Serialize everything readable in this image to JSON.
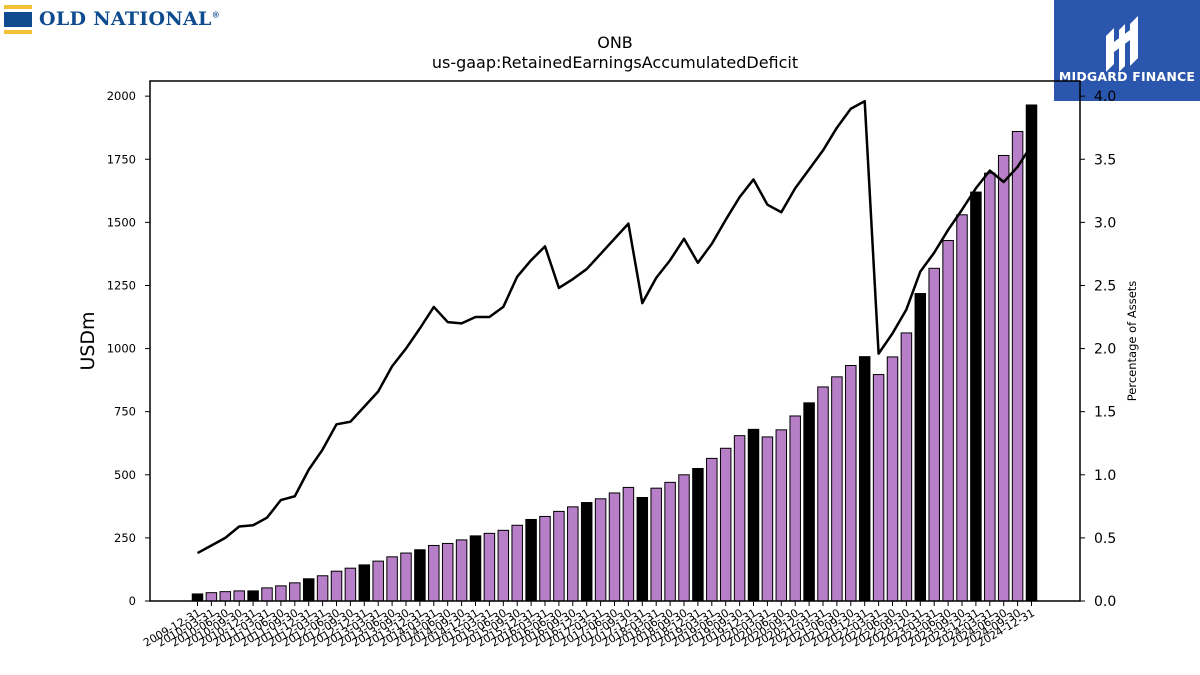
{
  "left_logo": {
    "text": "OLD NATIONAL",
    "mark": "®",
    "colors": {
      "blue": "#0f4c8f",
      "gold": "#f3c136"
    }
  },
  "right_logo": {
    "text": "MIDGARD FINANCE",
    "icon": "midgard-mark-icon",
    "colors": {
      "background": "#2a56ad",
      "foreground": "#ffffff"
    }
  },
  "chart_data": {
    "type": "bar",
    "title": "ONB",
    "subtitle": "us-gaap:RetainedEarningsAccumulatedDeficit",
    "ylabel": "USDm",
    "y2label": "Percentage of Assets",
    "ylim": [
      0,
      2060
    ],
    "y2lim": [
      0,
      4.12
    ],
    "yticks": [
      "0",
      "250",
      "500",
      "750",
      "1000",
      "1250",
      "1500",
      "1750",
      "2000"
    ],
    "y2ticks": [
      "0.0",
      "0.5",
      "1.0",
      "1.5",
      "2.0",
      "2.5",
      "3.0",
      "3.5",
      "4.0"
    ],
    "categories": [
      "2009-12-31",
      "2010-03-31",
      "2010-06-30",
      "2010-09-30",
      "2010-12-31",
      "2011-03-31",
      "2011-06-30",
      "2011-09-30",
      "2011-12-31",
      "2012-03-31",
      "2012-06-30",
      "2012-09-30",
      "2012-12-31",
      "2013-03-31",
      "2013-06-30",
      "2013-09-30",
      "2013-12-31",
      "2014-03-31",
      "2014-06-30",
      "2014-09-30",
      "2014-12-31",
      "2015-03-31",
      "2015-06-30",
      "2015-09-30",
      "2015-12-31",
      "2016-03-31",
      "2016-06-30",
      "2016-09-30",
      "2016-12-31",
      "2017-03-31",
      "2017-06-30",
      "2017-09-30",
      "2017-12-31",
      "2018-03-31",
      "2018-06-30",
      "2018-09-30",
      "2018-12-31",
      "2019-03-31",
      "2019-06-30",
      "2019-09-30",
      "2019-12-31",
      "2020-03-31",
      "2020-06-30",
      "2020-09-30",
      "2020-12-31",
      "2021-03-31",
      "2021-06-30",
      "2021-09-30",
      "2021-12-31",
      "2022-03-31",
      "2022-06-30",
      "2022-09-30",
      "2022-12-31",
      "2023-03-31",
      "2023-06-30",
      "2023-09-30",
      "2023-12-31",
      "2024-03-31",
      "2024-06-30",
      "2024-09-30",
      "2024-12-31"
    ],
    "year_end_highlight": true,
    "series": [
      {
        "name": "USDm",
        "type": "bar",
        "values": [
          28,
          33,
          37,
          40,
          40,
          52,
          60,
          72,
          88,
          100,
          118,
          130,
          143,
          158,
          175,
          190,
          203,
          220,
          228,
          242,
          258,
          268,
          280,
          300,
          323,
          335,
          355,
          373,
          390,
          405,
          428,
          450,
          410,
          447,
          470,
          500,
          525,
          565,
          605,
          655,
          680,
          650,
          678,
          733,
          785,
          848,
          888,
          933,
          968,
          897,
          967,
          1062,
          1218,
          1318,
          1428,
          1530,
          1620,
          1695,
          1765,
          1860,
          1965
        ]
      },
      {
        "name": "Percentage of Assets",
        "type": "line",
        "axis": "right",
        "values": [
          0.38,
          0.44,
          0.5,
          0.59,
          0.6,
          0.66,
          0.8,
          0.83,
          1.04,
          1.2,
          1.4,
          1.42,
          1.54,
          1.66,
          1.86,
          2.0,
          2.16,
          2.33,
          2.21,
          2.2,
          2.25,
          2.25,
          2.33,
          2.57,
          2.7,
          2.81,
          2.48,
          2.55,
          2.63,
          2.75,
          2.87,
          2.99,
          2.36,
          2.56,
          2.7,
          2.87,
          2.68,
          2.83,
          3.02,
          3.2,
          3.34,
          3.14,
          3.08,
          3.27,
          3.42,
          3.57,
          3.75,
          3.9,
          3.96,
          1.96,
          2.12,
          2.31,
          2.61,
          2.76,
          2.94,
          3.1,
          3.27,
          3.41,
          3.32,
          3.44,
          3.61
        ]
      }
    ],
    "colors": {
      "bar": "#b77fc7",
      "bar_year_end": "#000000",
      "line": "#000000"
    }
  }
}
